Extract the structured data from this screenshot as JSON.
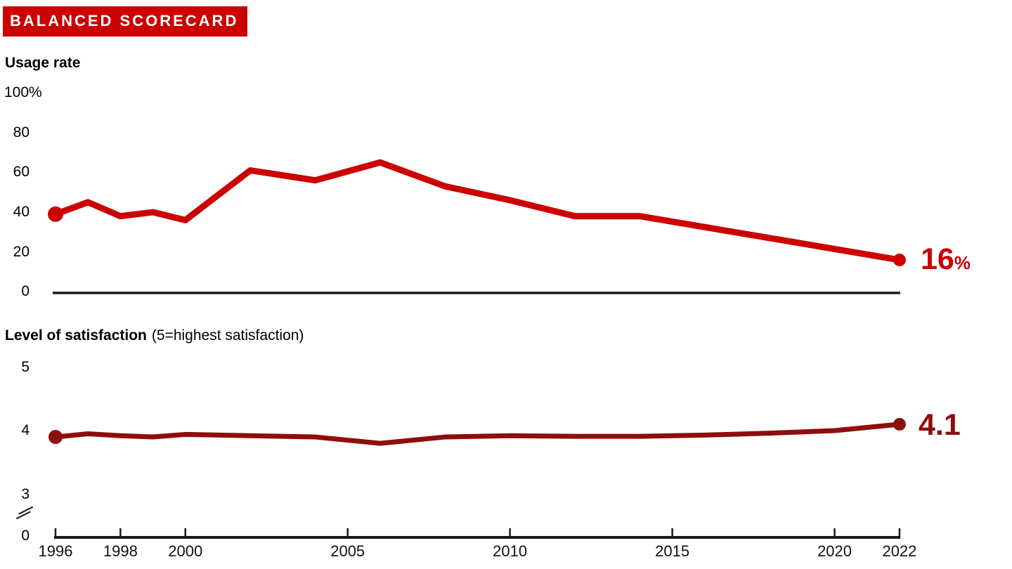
{
  "banner": {
    "title": "BALANCED SCORECARD"
  },
  "colors": {
    "banner_bg": "#CC0000",
    "bright_red": "#CC0000",
    "dark_red": "#8E0D0D",
    "axis": "#1A1A1A"
  },
  "x_axis": {
    "range": [
      1996,
      2022
    ],
    "ticks": [
      1996,
      1998,
      2000,
      2005,
      2010,
      2015,
      2020,
      2022
    ],
    "tick_labels": [
      "1996",
      "1998",
      "2000",
      "2005",
      "2010",
      "2015",
      "2020",
      "2022"
    ]
  },
  "chart_data": [
    {
      "type": "line",
      "title": "Usage rate",
      "unit": "%",
      "x": [
        1996,
        1997,
        1998,
        1999,
        2000,
        2002,
        2004,
        2006,
        2008,
        2010,
        2012,
        2014,
        2022
      ],
      "values": [
        39,
        45,
        38,
        40,
        36,
        61,
        56,
        65,
        53,
        46,
        38,
        38,
        16
      ],
      "ylim": [
        0,
        100
      ],
      "yticks": [
        100,
        80,
        60,
        40,
        20,
        0
      ],
      "ytick_labels": [
        "100%",
        "80",
        "60",
        "40",
        "20",
        "0"
      ],
      "line_color": "#CC0000",
      "end_label": {
        "value": "16",
        "suffix": "%"
      },
      "legend": "none",
      "grid": false
    },
    {
      "type": "line",
      "title_bold": "Level of satisfaction",
      "title_note": "(5=highest satisfaction)",
      "x": [
        1996,
        1997,
        1998,
        1999,
        2000,
        2002,
        2004,
        2006,
        2008,
        2010,
        2012,
        2014,
        2016,
        2018,
        2020,
        2022
      ],
      "values": [
        3.9,
        3.95,
        3.92,
        3.9,
        3.94,
        3.92,
        3.9,
        3.8,
        3.9,
        3.92,
        3.91,
        3.91,
        3.93,
        3.96,
        4.0,
        4.1
      ],
      "ylim": [
        0,
        5
      ],
      "axis_break": true,
      "yticks": [
        5,
        4,
        3
      ],
      "ytick_labels": [
        "5",
        "4",
        "3"
      ],
      "zero_label": "0",
      "line_color": "#8E0D0D",
      "end_label": {
        "value": "4.1"
      },
      "legend": "none",
      "grid": false
    }
  ]
}
